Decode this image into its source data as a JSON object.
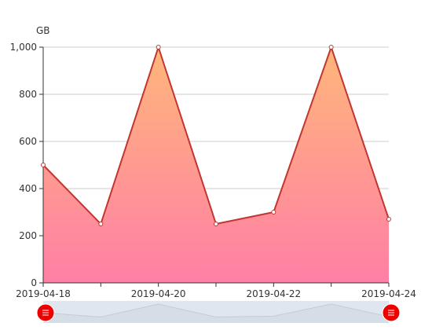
{
  "chart_data": {
    "type": "area",
    "y_unit": "GB",
    "ylim": [
      0,
      1000
    ],
    "y_ticks": [
      "0",
      "200",
      "400",
      "600",
      "800",
      "1,000"
    ],
    "x_labels_shown": [
      "2019-04-18",
      "2019-04-20",
      "2019-04-22",
      "2019-04-24"
    ],
    "x": [
      "2019-04-18",
      "2019-04-19",
      "2019-04-20",
      "2019-04-21",
      "2019-04-22",
      "2019-04-23",
      "2019-04-24"
    ],
    "values": [
      500,
      250,
      1000,
      250,
      300,
      1000,
      270
    ],
    "grid": true,
    "legend": "none",
    "colors": {
      "line": "#c23531",
      "area_top": "#ffb67a",
      "area_bottom": "#ff7fa6",
      "grid": "#cccccc",
      "axis": "#333333",
      "handle": "#ee0000",
      "slider_bg": "#dfe6ef",
      "slider_line": "#c3cbd6"
    },
    "zoom_slider": {
      "start_percent": 0,
      "end_percent": 100,
      "handle_icon": "grip-handle-icon"
    }
  }
}
